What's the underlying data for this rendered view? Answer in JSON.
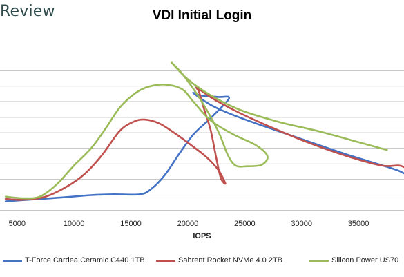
{
  "brand": "Review",
  "chart_data": {
    "type": "line",
    "title": "VDI Initial Login",
    "xlabel": "IOPS",
    "ylabel": "",
    "xlim": [
      3500,
      39000
    ],
    "ylim": [
      0,
      11
    ],
    "xticks": [
      5000,
      10000,
      15000,
      20000,
      25000,
      30000,
      35000
    ],
    "grid": true,
    "legend_position": "bottom",
    "series": [
      {
        "name": "T-Force Cardea Ceramic C440 1TB",
        "color": "#4472c4",
        "points": [
          [
            4000,
            0.6
          ],
          [
            6000,
            0.7
          ],
          [
            9000,
            0.85
          ],
          [
            11500,
            1.0
          ],
          [
            13500,
            1.05
          ],
          [
            15800,
            1.05
          ],
          [
            16800,
            1.4
          ],
          [
            18000,
            2.3
          ],
          [
            19200,
            3.6
          ],
          [
            20500,
            4.9
          ],
          [
            21800,
            5.8
          ],
          [
            23300,
            6.9
          ],
          [
            23600,
            7.3
          ],
          [
            22700,
            7.3
          ],
          [
            21100,
            7.4
          ],
          [
            20500,
            7.55
          ],
          [
            22000,
            6.8
          ],
          [
            23800,
            6.2
          ],
          [
            26000,
            5.6
          ],
          [
            30000,
            4.6
          ],
          [
            34000,
            3.6
          ],
          [
            38000,
            2.7
          ],
          [
            39000,
            2.4
          ]
        ]
      },
      {
        "name": "Sabrent Rocket NVMe 4.0 2TB",
        "color": "#c0504d",
        "points": [
          [
            4000,
            0.75
          ],
          [
            5500,
            0.7
          ],
          [
            7500,
            0.9
          ],
          [
            9500,
            1.6
          ],
          [
            11000,
            2.4
          ],
          [
            12500,
            3.6
          ],
          [
            14000,
            5.1
          ],
          [
            15200,
            5.7
          ],
          [
            16200,
            5.85
          ],
          [
            17500,
            5.6
          ],
          [
            19000,
            4.9
          ],
          [
            20500,
            4.1
          ],
          [
            21700,
            3.4
          ],
          [
            22700,
            2.6
          ],
          [
            23300,
            1.75
          ],
          [
            22900,
            2.1
          ],
          [
            22500,
            3.4
          ],
          [
            22000,
            5.2
          ],
          [
            21400,
            6.6
          ],
          [
            21000,
            7.6
          ],
          [
            20800,
            7.9
          ],
          [
            22200,
            7.2
          ],
          [
            24500,
            6.3
          ],
          [
            27500,
            5.3
          ],
          [
            30500,
            4.4
          ],
          [
            34000,
            3.5
          ],
          [
            37000,
            2.9
          ],
          [
            38500,
            2.9
          ],
          [
            39000,
            2.8
          ]
        ]
      },
      {
        "name": "Silicon Power US70",
        "color": "#9bbb59",
        "points": [
          [
            4000,
            0.9
          ],
          [
            5500,
            0.8
          ],
          [
            7000,
            0.9
          ],
          [
            8500,
            1.7
          ],
          [
            10000,
            2.9
          ],
          [
            11500,
            4.0
          ],
          [
            12800,
            5.3
          ],
          [
            14000,
            6.6
          ],
          [
            15300,
            7.5
          ],
          [
            16500,
            7.95
          ],
          [
            18000,
            8.1
          ],
          [
            19500,
            7.8
          ],
          [
            20500,
            7.0
          ],
          [
            22000,
            5.8
          ],
          [
            24000,
            4.9
          ],
          [
            26000,
            4.2
          ],
          [
            27000,
            3.5
          ],
          [
            26500,
            2.95
          ],
          [
            25200,
            2.85
          ],
          [
            24200,
            2.9
          ],
          [
            23500,
            3.6
          ],
          [
            22800,
            4.9
          ],
          [
            21800,
            6.3
          ],
          [
            20700,
            7.6
          ],
          [
            19500,
            8.8
          ],
          [
            18600,
            9.5
          ],
          [
            19900,
            8.5
          ],
          [
            21800,
            7.5
          ],
          [
            24500,
            6.5
          ],
          [
            28000,
            5.7
          ],
          [
            31500,
            5.1
          ],
          [
            35000,
            4.4
          ],
          [
            37500,
            3.9
          ]
        ]
      }
    ]
  }
}
